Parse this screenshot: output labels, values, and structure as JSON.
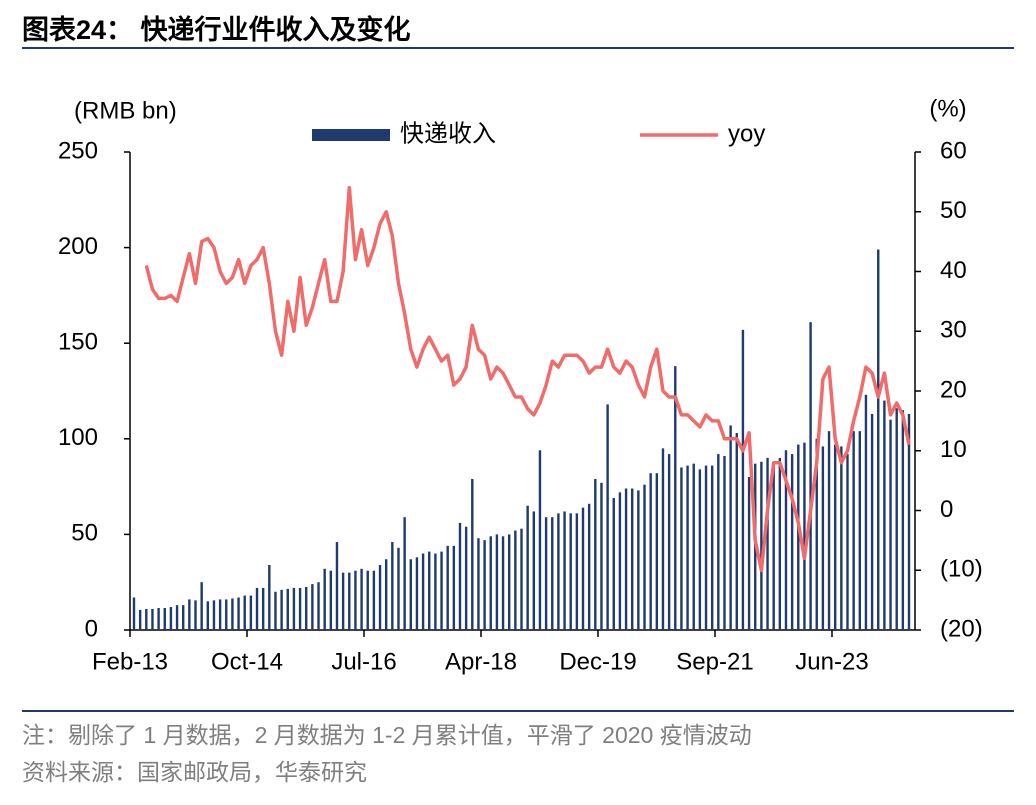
{
  "chart_data": {
    "type": "bar",
    "title": "图表24：  快递行业件收入及变化",
    "y_label": "(RMB bn)",
    "y2_label": "(%)",
    "notes": [
      "注：剔除了 1 月数据，2 月数据为 1-2 月累计值，平滑了 2020 疫情波动",
      "资料来源：国家邮政局，华泰研究"
    ],
    "categories": [
      "Feb-13",
      "Mar-13",
      "Apr-13",
      "May-13",
      "Jun-13",
      "Jul-13",
      "Aug-13",
      "Sep-13",
      "Oct-13",
      "Nov-13",
      "Dec-13",
      "Feb-14",
      "Mar-14",
      "Apr-14",
      "May-14",
      "Jun-14",
      "Jul-14",
      "Aug-14",
      "Sep-14",
      "Oct-14",
      "Nov-14",
      "Dec-14",
      "Feb-15",
      "Mar-15",
      "Apr-15",
      "May-15",
      "Jun-15",
      "Jul-15",
      "Aug-15",
      "Sep-15",
      "Oct-15",
      "Nov-15",
      "Dec-15",
      "Feb-16",
      "Mar-16",
      "Apr-16",
      "May-16",
      "Jun-16",
      "Jul-16",
      "Aug-16",
      "Sep-16",
      "Oct-16",
      "Nov-16",
      "Dec-16",
      "Feb-17",
      "Mar-17",
      "Apr-17",
      "May-17",
      "Jun-17",
      "Jul-17",
      "Aug-17",
      "Sep-17",
      "Oct-17",
      "Nov-17",
      "Dec-17",
      "Feb-18",
      "Mar-18",
      "Apr-18",
      "May-18",
      "Jun-18",
      "Jul-18",
      "Aug-18",
      "Sep-18",
      "Oct-18",
      "Nov-18",
      "Dec-18",
      "Feb-19",
      "Mar-19",
      "Apr-19",
      "May-19",
      "Jun-19",
      "Jul-19",
      "Aug-19",
      "Sep-19",
      "Oct-19",
      "Nov-19",
      "Dec-19",
      "Feb-20",
      "Mar-20",
      "Apr-20",
      "May-20",
      "Jun-20",
      "Jul-20",
      "Aug-20",
      "Sep-20",
      "Oct-20",
      "Nov-20",
      "Dec-20",
      "Feb-21",
      "Mar-21",
      "Apr-21",
      "May-21",
      "Jun-21",
      "Jul-21",
      "Aug-21",
      "Sep-21",
      "Oct-21",
      "Nov-21",
      "Dec-21",
      "Feb-22",
      "Mar-22",
      "Apr-22",
      "May-22",
      "Jun-22",
      "Jul-22",
      "Aug-22",
      "Sep-22",
      "Oct-22",
      "Nov-22",
      "Dec-22",
      "Feb-23",
      "Mar-23",
      "Apr-23",
      "May-23",
      "Jun-23",
      "Jul-23",
      "Aug-23",
      "Sep-23",
      "Oct-23",
      "Nov-23",
      "Dec-23",
      "Feb-24",
      "Mar-24",
      "Apr-24",
      "May-24",
      "Jun-24",
      "Jul-24"
    ],
    "xticks": [
      "Feb-13",
      "Oct-14",
      "Jul-16",
      "Apr-18",
      "Dec-19",
      "Sep-21",
      "Jun-23"
    ],
    "series": [
      {
        "name": "快递收入",
        "type": "bar",
        "color": "#1f3a6e",
        "values": [
          17,
          10.5,
          11,
          11,
          11.5,
          11.5,
          12,
          13,
          13,
          16,
          15.5,
          25,
          15,
          15.5,
          16,
          16,
          16.5,
          17,
          18,
          18,
          22,
          22,
          34,
          20,
          21,
          21.5,
          22,
          22,
          22.5,
          24,
          25,
          32,
          31,
          46,
          30,
          30,
          31,
          32,
          31,
          31,
          34,
          37,
          46,
          43,
          59,
          37,
          38,
          40,
          41,
          40,
          41,
          44,
          44,
          56,
          54,
          79,
          48,
          47,
          49,
          50,
          49,
          50,
          52,
          53,
          65,
          62,
          94,
          59,
          59,
          61,
          62,
          61,
          61,
          64,
          66,
          79,
          77,
          118,
          69,
          72,
          74,
          74,
          73,
          76,
          82,
          82,
          95,
          92,
          138,
          85,
          86,
          87,
          84,
          86,
          86,
          92,
          91,
          107,
          103,
          157,
          80,
          87,
          88,
          90,
          88,
          90,
          94,
          92,
          97,
          98,
          161,
          100,
          96,
          104,
          97,
          96,
          92,
          104,
          104,
          123,
          113,
          199,
          120,
          110,
          116,
          115,
          113
        ]
      },
      {
        "name": "yoy",
        "type": "line",
        "axis": "y2",
        "color": "#f26b6b",
        "values": [
          null,
          null,
          41,
          37,
          35.5,
          35.5,
          36,
          35,
          39,
          43,
          38,
          45,
          45.5,
          44,
          40,
          38,
          39,
          42,
          38,
          41,
          42,
          44,
          38,
          30,
          26,
          35,
          30,
          39,
          31,
          34,
          38,
          42,
          35,
          35,
          40,
          54,
          42,
          47,
          41,
          44,
          48,
          50,
          46,
          38,
          33,
          27,
          24,
          27,
          29,
          27,
          25,
          26,
          21,
          22,
          24,
          31,
          27,
          26,
          22,
          24,
          23,
          21,
          19,
          19,
          17,
          16,
          18,
          21,
          25,
          24,
          26,
          26,
          26,
          25,
          23,
          24,
          24,
          27,
          24,
          23,
          25,
          24,
          21,
          19,
          24,
          27,
          20,
          19,
          19,
          16,
          16,
          15,
          14,
          16,
          15,
          15,
          12,
          12,
          12,
          10,
          13,
          -5,
          -10,
          0,
          8,
          8,
          5,
          2,
          -2,
          -8,
          0,
          8,
          22,
          24,
          12,
          8,
          10,
          15,
          19,
          24,
          23,
          19,
          23,
          16,
          18,
          16,
          11
        ]
      }
    ],
    "ylim": [
      0,
      250
    ],
    "yticks": [
      0,
      50,
      100,
      150,
      200,
      250
    ],
    "y2lim": [
      -20,
      60
    ],
    "y2ticks": [
      {
        "value": -20,
        "label": "(20)"
      },
      {
        "value": -10,
        "label": "(10)"
      },
      0,
      10,
      20,
      30,
      40,
      50,
      60
    ]
  }
}
